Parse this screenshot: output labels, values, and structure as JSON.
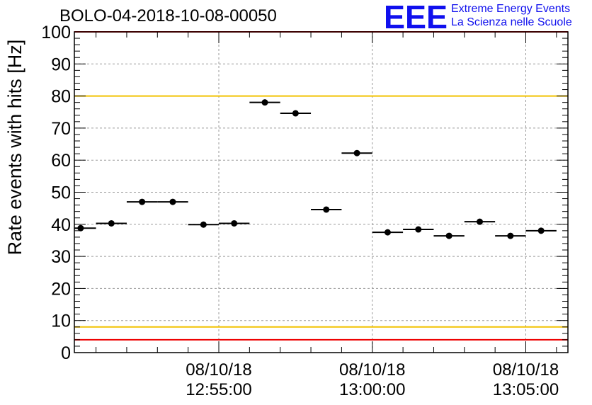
{
  "header": {
    "run_title": "BOLO-04-2018-10-08-00050",
    "logo_text": "EEE",
    "logo_line1": "Extreme Energy Events",
    "logo_line2": "La Scienza nelle Scuole"
  },
  "colors": {
    "logo_blue": "#1010ee",
    "red_line": "#ee0000",
    "yellow_line": "#f2c200",
    "grid": "#9a9a9a"
  },
  "chart_data": {
    "type": "scatter",
    "title": "",
    "ylabel": "Rate events with hits [Hz]",
    "xlabel": "",
    "ylim": [
      0,
      100
    ],
    "yticks": [
      0,
      10,
      20,
      30,
      40,
      50,
      60,
      70,
      80,
      90,
      100
    ],
    "xlim_minutes": [
      12.627,
      12.805
    ],
    "xticks": [
      {
        "t": 55,
        "date": "08/10/18",
        "time": "12:55:00"
      },
      {
        "t": 60,
        "date": "08/10/18",
        "time": "13:00:00"
      },
      {
        "t": 65,
        "date": "08/10/18",
        "time": "13:05:00"
      }
    ],
    "grid": true,
    "reference_lines": [
      {
        "value": 100,
        "color": "red"
      },
      {
        "value": 80,
        "color": "yellow"
      },
      {
        "value": 8,
        "color": "yellow"
      },
      {
        "value": 4,
        "color": "red"
      }
    ],
    "series": [
      {
        "points": [
          {
            "x": "12:50:30",
            "y": 38.8
          },
          {
            "x": "12:51:30",
            "y": 40.3
          },
          {
            "x": "12:52:30",
            "y": 47.0
          },
          {
            "x": "12:53:30",
            "y": 47.0
          },
          {
            "x": "12:54:30",
            "y": 39.9
          },
          {
            "x": "12:55:30",
            "y": 40.3
          },
          {
            "x": "12:56:30",
            "y": 78.0
          },
          {
            "x": "12:57:30",
            "y": 74.6
          },
          {
            "x": "12:58:30",
            "y": 44.6
          },
          {
            "x": "12:59:30",
            "y": 62.2
          },
          {
            "x": "13:00:30",
            "y": 37.5
          },
          {
            "x": "13:01:30",
            "y": 38.4
          },
          {
            "x": "13:02:30",
            "y": 36.4
          },
          {
            "x": "13:03:30",
            "y": 40.8
          },
          {
            "x": "13:04:30",
            "y": 36.4
          },
          {
            "x": "13:05:30",
            "y": 38.0
          }
        ],
        "x_halfwidth_seconds": 30
      }
    ]
  }
}
